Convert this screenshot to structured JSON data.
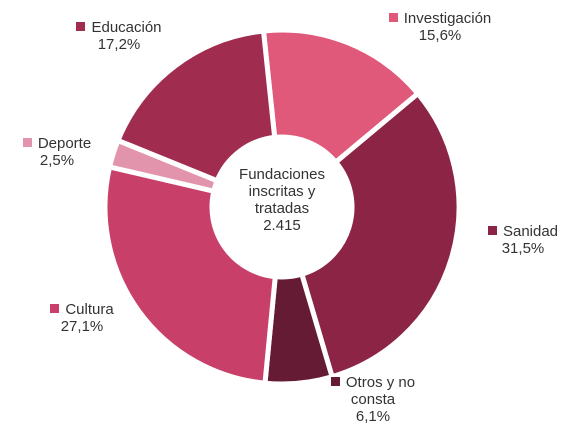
{
  "chart_data": {
    "type": "pie",
    "categories": [
      "Investigación",
      "Sanidad",
      "Otros y no consta",
      "Cultura",
      "Deporte",
      "Educación"
    ],
    "values": [
      15.6,
      31.5,
      6.1,
      27.1,
      2.5,
      17.2
    ],
    "value_labels": [
      "15,6%",
      "31,5%",
      "6,1%",
      "27,1%",
      "2,5%",
      "17,2%"
    ],
    "colors": [
      "#e0587a",
      "#8b2445",
      "#661b35",
      "#c8406a",
      "#e394ad",
      "#a02d50"
    ],
    "center_text": "Fundaciones inscritas y tratadas",
    "center_value": {
      "value": 2415,
      "label": "2.415"
    }
  }
}
